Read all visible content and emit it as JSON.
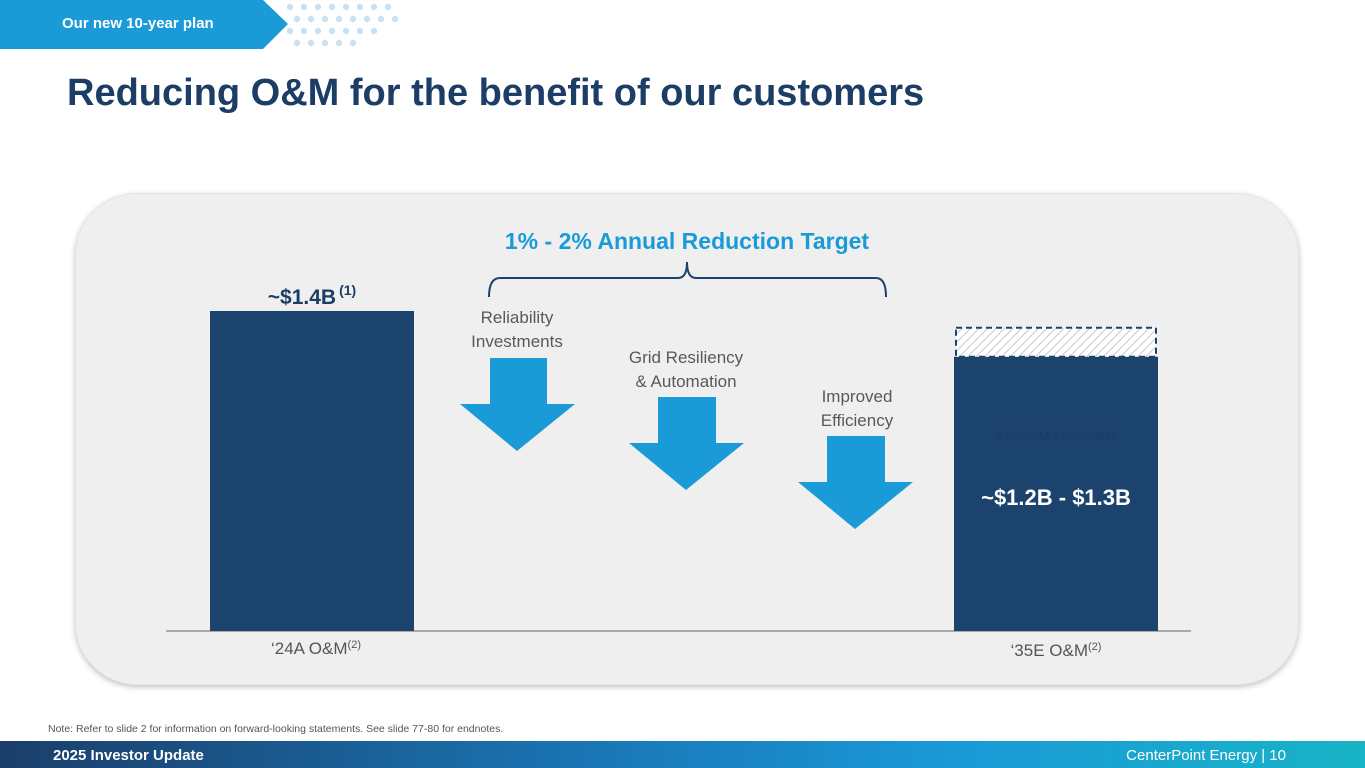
{
  "header": {
    "section_tag": "Our new 10-year plan",
    "title": "Reducing O&M for the benefit of our customers"
  },
  "chart_data": {
    "type": "bar",
    "categories": [
      "‘24A O&M",
      "‘35E O&M"
    ],
    "category_superscripts": [
      "(2)",
      "(2)"
    ],
    "values": [
      1.4,
      1.2
    ],
    "upper_range_band": {
      "low": 1.2,
      "high": 1.3,
      "label": "$100MM - $200MM"
    },
    "units": "$B",
    "data_labels": [
      "~$1.4B",
      "~$1.2B - $1.3B"
    ],
    "data_label_superscripts": [
      "(1)",
      ""
    ],
    "bracket_title": "1% - 2% Annual Reduction Target",
    "drivers": [
      "Reliability Investments",
      "Grid Resiliency & Automation",
      "Improved Efficiency"
    ],
    "driver_lines": [
      [
        "Reliability",
        "Investments"
      ],
      [
        "Grid Resiliency",
        "& Automation"
      ],
      [
        "Improved",
        "Efficiency"
      ]
    ],
    "ylim": [
      0,
      1.4
    ],
    "colors": {
      "bar": "#1c436e",
      "arrow": "#1a9ad7",
      "accent": "#1a9ad7",
      "band_border": "#1c436e"
    }
  },
  "footnote": "Note: Refer to slide 2 for information on forward-looking statements. See slide 77-80 for endnotes.",
  "footer": {
    "left": "2025 Investor Update",
    "right": "CenterPoint Energy | 10"
  }
}
